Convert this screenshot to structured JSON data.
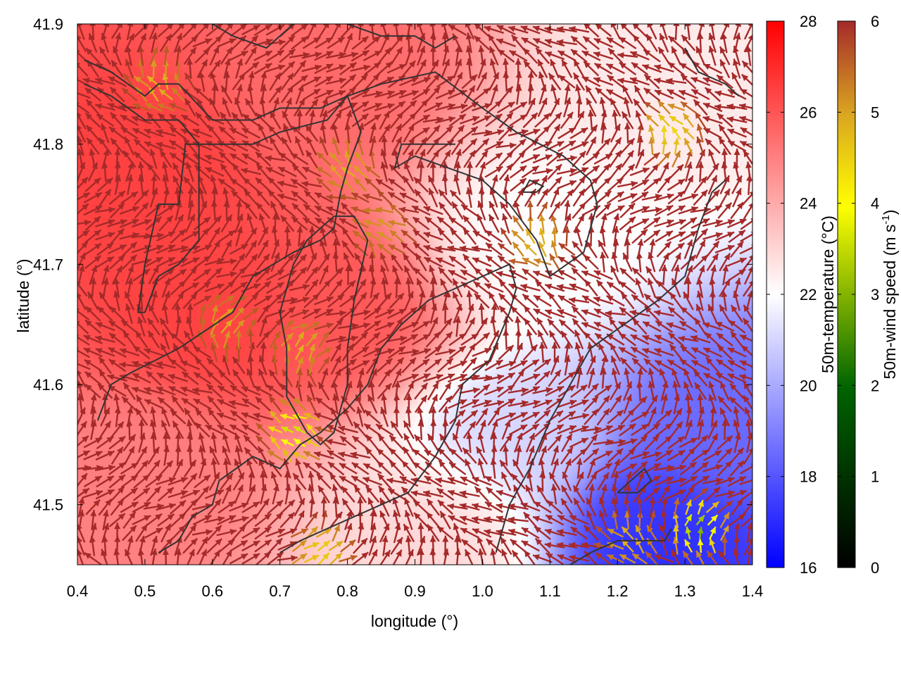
{
  "chart_data": {
    "type": "heatmap",
    "title": "",
    "xlabel": "longitude (°)",
    "ylabel": "latitude (°)",
    "xlim": [
      0.4,
      1.4
    ],
    "ylim": [
      41.45,
      41.9
    ],
    "x_ticks": [
      "0.4",
      "0.5",
      "0.6",
      "0.7",
      "0.8",
      "0.9",
      "1.0",
      "1.1",
      "1.2",
      "1.3",
      "1.4"
    ],
    "x_tick_values": [
      0.4,
      0.5,
      0.6,
      0.7,
      0.8,
      0.9,
      1.0,
      1.1,
      1.2,
      1.3,
      1.4
    ],
    "y_ticks": [
      "41.5",
      "41.6",
      "41.7",
      "41.8",
      "41.9"
    ],
    "y_tick_values": [
      41.5,
      41.6,
      41.7,
      41.8,
      41.9
    ],
    "grid": false,
    "temperature_colorbar": {
      "label": "50m-temperature (°C)",
      "range": [
        16,
        28
      ],
      "ticks": [
        "16",
        "18",
        "20",
        "22",
        "24",
        "26",
        "28"
      ],
      "tick_values": [
        16,
        18,
        20,
        22,
        24,
        26,
        28
      ],
      "colors": [
        "#0000ff",
        "#ffffff",
        "#ff0000"
      ]
    },
    "wind_colorbar": {
      "label_prefix": "50m-wind speed (m s",
      "label_exponent": "-1",
      "label_suffix": ")",
      "range": [
        0,
        6
      ],
      "ticks": [
        "0",
        "1",
        "2",
        "3",
        "4",
        "5",
        "6"
      ],
      "tick_values": [
        0,
        1,
        2,
        3,
        4,
        5,
        6
      ],
      "colors": [
        "#000000",
        "#006400",
        "#ffff00",
        "#daa520",
        "#a52a2a"
      ]
    },
    "temperature_centers": [
      {
        "lon": 0.5,
        "lat": 41.78,
        "t": 26.5
      },
      {
        "lon": 0.6,
        "lat": 41.66,
        "t": 26.5
      },
      {
        "lon": 0.78,
        "lat": 41.66,
        "t": 26.0
      },
      {
        "lon": 0.76,
        "lat": 41.85,
        "t": 25.5
      },
      {
        "lon": 0.48,
        "lat": 41.52,
        "t": 25.0
      },
      {
        "lon": 1.08,
        "lat": 41.72,
        "t": 22.0
      },
      {
        "lon": 1.3,
        "lat": 41.85,
        "t": 22.5
      },
      {
        "lon": 1.25,
        "lat": 41.48,
        "t": 17.0
      },
      {
        "lon": 1.35,
        "lat": 41.56,
        "t": 18.5
      },
      {
        "lon": 1.05,
        "lat": 41.55,
        "t": 21.0
      },
      {
        "lon": 0.95,
        "lat": 41.48,
        "t": 23.0
      }
    ],
    "wind_field": {
      "lon_range": [
        0.405,
        1.395
      ],
      "lat_range": [
        41.455,
        41.895
      ],
      "nx": 56,
      "ny": 42,
      "calm_zones": [
        {
          "lon": 1.08,
          "lat": 41.72,
          "speed": 4.2
        },
        {
          "lon": 0.85,
          "lat": 41.73,
          "speed": 4.6
        },
        {
          "lon": 0.8,
          "lat": 41.78,
          "speed": 4.3
        },
        {
          "lon": 0.73,
          "lat": 41.63,
          "speed": 4.3
        },
        {
          "lon": 0.62,
          "lat": 41.65,
          "speed": 4.4
        },
        {
          "lon": 0.52,
          "lat": 41.85,
          "speed": 4.2
        },
        {
          "lon": 0.72,
          "lat": 41.56,
          "speed": 2.6
        },
        {
          "lon": 1.28,
          "lat": 41.81,
          "speed": 3.6
        },
        {
          "lon": 1.32,
          "lat": 41.48,
          "speed": 2.2
        },
        {
          "lon": 1.22,
          "lat": 41.47,
          "speed": 4.3
        },
        {
          "lon": 0.76,
          "lat": 41.46,
          "speed": 3.8
        }
      ]
    },
    "contours": [
      [
        [
          0.41,
          41.87
        ],
        [
          0.45,
          41.86
        ],
        [
          0.5,
          41.84
        ],
        [
          0.52,
          41.85
        ],
        [
          0.55,
          41.85
        ],
        [
          0.6,
          41.82
        ],
        [
          0.66,
          41.82
        ],
        [
          0.7,
          41.83
        ],
        [
          0.76,
          41.83
        ],
        [
          0.8,
          41.84
        ],
        [
          0.85,
          41.85
        ],
        [
          0.93,
          41.86
        ],
        [
          1.0,
          41.83
        ],
        [
          1.05,
          41.81
        ],
        [
          1.12,
          41.79
        ],
        [
          1.16,
          41.77
        ],
        [
          1.17,
          41.75
        ],
        [
          1.15,
          41.71
        ],
        [
          1.1,
          41.69
        ],
        [
          1.08,
          41.72
        ],
        [
          1.04,
          41.75
        ],
        [
          1.0,
          41.77
        ],
        [
          0.95,
          41.78
        ],
        [
          0.9,
          41.79
        ],
        [
          0.87,
          41.78
        ],
        [
          0.88,
          41.8
        ],
        [
          0.93,
          41.8
        ],
        [
          0.96,
          41.8
        ]
      ],
      [
        [
          0.41,
          41.85
        ],
        [
          0.45,
          41.84
        ],
        [
          0.5,
          41.82
        ],
        [
          0.55,
          41.82
        ],
        [
          0.58,
          41.8
        ],
        [
          0.62,
          41.8
        ],
        [
          0.66,
          41.8
        ],
        [
          0.7,
          41.81
        ],
        [
          0.77,
          41.82
        ],
        [
          0.8,
          41.84
        ],
        [
          0.82,
          41.81
        ],
        [
          0.8,
          41.78
        ],
        [
          0.79,
          41.76
        ],
        [
          0.78,
          41.73
        ],
        [
          0.76,
          41.72
        ],
        [
          0.72,
          41.71
        ],
        [
          0.66,
          41.69
        ],
        [
          0.63,
          41.66
        ],
        [
          0.55,
          41.63
        ],
        [
          0.48,
          41.61
        ],
        [
          0.45,
          41.6
        ],
        [
          0.43,
          41.57
        ]
      ],
      [
        [
          0.5,
          41.66
        ],
        [
          0.52,
          41.69
        ],
        [
          0.55,
          41.7
        ],
        [
          0.58,
          41.72
        ],
        [
          0.58,
          41.8
        ],
        [
          0.56,
          41.8
        ],
        [
          0.55,
          41.75
        ],
        [
          0.52,
          41.75
        ],
        [
          0.5,
          41.7
        ],
        [
          0.49,
          41.66
        ],
        [
          0.5,
          41.66
        ]
      ],
      [
        [
          0.74,
          41.72
        ],
        [
          0.72,
          41.7
        ],
        [
          0.7,
          41.66
        ],
        [
          0.71,
          41.63
        ],
        [
          0.71,
          41.59
        ],
        [
          0.74,
          41.56
        ],
        [
          0.76,
          41.55
        ],
        [
          0.78,
          41.56
        ],
        [
          0.8,
          41.6
        ],
        [
          0.8,
          41.63
        ],
        [
          0.81,
          41.67
        ],
        [
          0.83,
          41.72
        ],
        [
          0.81,
          41.74
        ],
        [
          0.78,
          41.74
        ],
        [
          0.74,
          41.72
        ]
      ],
      [
        [
          0.52,
          41.46
        ],
        [
          0.55,
          41.47
        ],
        [
          0.57,
          41.49
        ],
        [
          0.6,
          41.5
        ],
        [
          0.61,
          41.52
        ],
        [
          0.66,
          41.54
        ],
        [
          0.7,
          41.53
        ],
        [
          0.73,
          41.55
        ],
        [
          0.76,
          41.56
        ],
        [
          0.8,
          41.58
        ],
        [
          0.83,
          41.6
        ],
        [
          0.85,
          41.63
        ],
        [
          0.88,
          41.65
        ],
        [
          0.92,
          41.67
        ],
        [
          0.96,
          41.68
        ],
        [
          1.0,
          41.69
        ],
        [
          1.04,
          41.7
        ],
        [
          1.05,
          41.68
        ],
        [
          1.04,
          41.66
        ],
        [
          1.01,
          41.62
        ],
        [
          0.97,
          41.6
        ],
        [
          0.96,
          41.57
        ],
        [
          0.93,
          41.54
        ],
        [
          0.89,
          41.51
        ],
        [
          0.85,
          41.5
        ],
        [
          0.81,
          41.49
        ],
        [
          0.77,
          41.48
        ],
        [
          0.73,
          41.47
        ],
        [
          0.7,
          41.46
        ]
      ],
      [
        [
          1.02,
          41.46
        ],
        [
          1.04,
          41.5
        ],
        [
          1.07,
          41.53
        ],
        [
          1.1,
          41.57
        ],
        [
          1.13,
          41.6
        ],
        [
          1.16,
          41.63
        ],
        [
          1.21,
          41.65
        ],
        [
          1.26,
          41.67
        ],
        [
          1.3,
          41.69
        ],
        [
          1.32,
          41.73
        ],
        [
          1.34,
          41.76
        ],
        [
          1.36,
          41.77
        ]
      ],
      [
        [
          1.13,
          41.45
        ],
        [
          1.16,
          41.46
        ],
        [
          1.2,
          41.47
        ],
        [
          1.24,
          41.47
        ],
        [
          1.27,
          41.47
        ],
        [
          1.28,
          41.48
        ]
      ],
      [
        [
          1.2,
          41.51
        ],
        [
          1.23,
          41.51
        ],
        [
          1.25,
          41.52
        ],
        [
          1.24,
          41.53
        ],
        [
          1.22,
          41.52
        ],
        [
          1.2,
          41.51
        ]
      ],
      [
        [
          1.06,
          41.76
        ],
        [
          1.08,
          41.76
        ],
        [
          1.09,
          41.765
        ],
        [
          1.07,
          41.77
        ],
        [
          1.06,
          41.76
        ]
      ],
      [
        [
          0.6,
          41.9
        ],
        [
          0.63,
          41.89
        ],
        [
          0.68,
          41.88
        ],
        [
          0.7,
          41.89
        ],
        [
          0.72,
          41.9
        ]
      ],
      [
        [
          0.8,
          41.9
        ],
        [
          0.85,
          41.89
        ],
        [
          0.9,
          41.89
        ],
        [
          0.93,
          41.88
        ],
        [
          0.96,
          41.89
        ]
      ],
      [
        [
          1.3,
          41.88
        ],
        [
          1.32,
          41.86
        ],
        [
          1.36,
          41.85
        ],
        [
          1.38,
          41.84
        ]
      ]
    ]
  }
}
